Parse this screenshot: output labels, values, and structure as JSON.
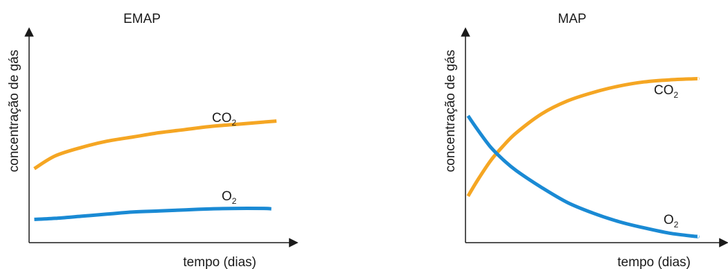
{
  "colors": {
    "co2": "#f5a623",
    "o2": "#1a8ad4",
    "axis": "#1a1a1a"
  },
  "chart_data": [
    {
      "type": "line",
      "title": "EMAP",
      "xlabel": "tempo (dias)",
      "ylabel": "concentração de gás",
      "xlim": [
        0,
        10
      ],
      "ylim": [
        0,
        10
      ],
      "grid": false,
      "series": [
        {
          "name": "CO",
          "sub": "2",
          "color_key": "co2",
          "x": [
            0.2,
            1,
            2,
            3,
            4,
            5,
            6,
            7,
            8,
            9,
            9.5
          ],
          "y": [
            3.5,
            4.1,
            4.5,
            4.8,
            5.0,
            5.2,
            5.35,
            5.5,
            5.6,
            5.7,
            5.75
          ]
        },
        {
          "name": "O",
          "sub": "2",
          "color_key": "o2",
          "x": [
            0.2,
            1,
            2,
            3,
            4,
            5,
            6,
            7,
            8,
            9,
            9.3
          ],
          "y": [
            1.1,
            1.15,
            1.25,
            1.35,
            1.45,
            1.5,
            1.55,
            1.6,
            1.62,
            1.62,
            1.6
          ]
        }
      ]
    },
    {
      "type": "line",
      "title": "MAP",
      "xlabel": "tempo (dias)",
      "ylabel": "concentração de gás",
      "xlim": [
        0,
        10
      ],
      "ylim": [
        0,
        10
      ],
      "grid": false,
      "series": [
        {
          "name": "CO",
          "sub": "2",
          "color_key": "co2",
          "x": [
            0.1,
            0.5,
            1,
            1.5,
            2,
            3,
            4,
            5,
            6,
            7,
            8,
            9,
            9.1
          ],
          "y": [
            2.2,
            3.0,
            3.9,
            4.6,
            5.2,
            6.1,
            6.7,
            7.1,
            7.4,
            7.6,
            7.7,
            7.75,
            7.75
          ]
        },
        {
          "name": "O",
          "sub": "2",
          "color_key": "o2",
          "x": [
            0.1,
            0.5,
            1,
            1.5,
            2,
            3,
            4,
            5,
            6,
            7,
            8,
            9,
            9.1
          ],
          "y": [
            6.0,
            5.3,
            4.5,
            3.9,
            3.4,
            2.6,
            1.9,
            1.4,
            1.0,
            0.7,
            0.45,
            0.3,
            0.3
          ]
        }
      ]
    }
  ]
}
